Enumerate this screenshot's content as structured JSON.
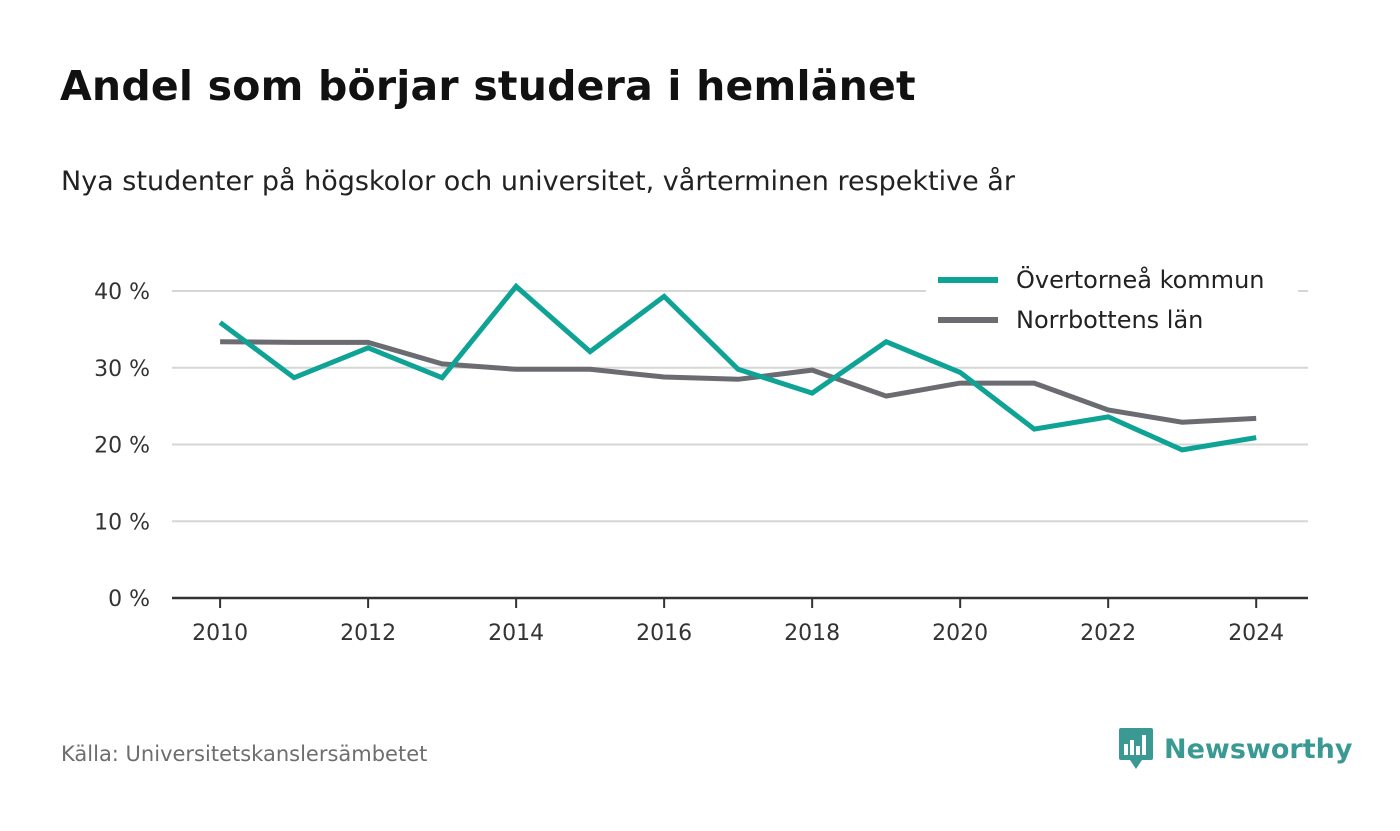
{
  "title": "Andel som börjar studera i hemlänet",
  "subtitle": "Nya studenter på högskolor och universitet, vårterminen respektive år",
  "source": "Källa: Universitetskanslersämbetet",
  "brand": "Newsworthy",
  "chart_data": {
    "type": "line",
    "title": "Andel som börjar studera i hemlänet",
    "subtitle": "Nya studenter på högskolor och universitet, vårterminen respektive år",
    "x": [
      2010,
      2011,
      2012,
      2013,
      2014,
      2015,
      2016,
      2017,
      2018,
      2019,
      2020,
      2021,
      2022,
      2023,
      2024
    ],
    "x_ticks": [
      2010,
      2012,
      2014,
      2016,
      2018,
      2020,
      2022,
      2024
    ],
    "y_ticks": [
      0,
      10,
      20,
      30,
      40
    ],
    "y_tick_labels": [
      "0 %",
      "10 %",
      "20 %",
      "30 %",
      "40 %"
    ],
    "ylim": [
      0,
      40
    ],
    "xlim": [
      2009.35,
      2024.7
    ],
    "grid": true,
    "legend_position": "top-right",
    "series": [
      {
        "name": "Övertorneå kommun",
        "color": "#0fa396",
        "values": [
          35.9,
          28.7,
          32.6,
          28.7,
          40.6,
          32.1,
          39.3,
          29.8,
          26.7,
          33.4,
          29.4,
          22.0,
          23.6,
          19.3,
          20.9
        ]
      },
      {
        "name": "Norrbottens län",
        "color": "#6b6b72",
        "values": [
          33.4,
          33.3,
          33.3,
          30.5,
          29.8,
          29.8,
          28.8,
          28.5,
          29.7,
          26.3,
          28.0,
          28.0,
          24.5,
          22.9,
          23.4
        ]
      }
    ]
  },
  "colors": {
    "axis": "#333333",
    "grid": "#d6d6d6",
    "brand": "#3a9a93"
  },
  "icons": {
    "brand_logo": "bar-chart-speech-bubble-icon"
  }
}
